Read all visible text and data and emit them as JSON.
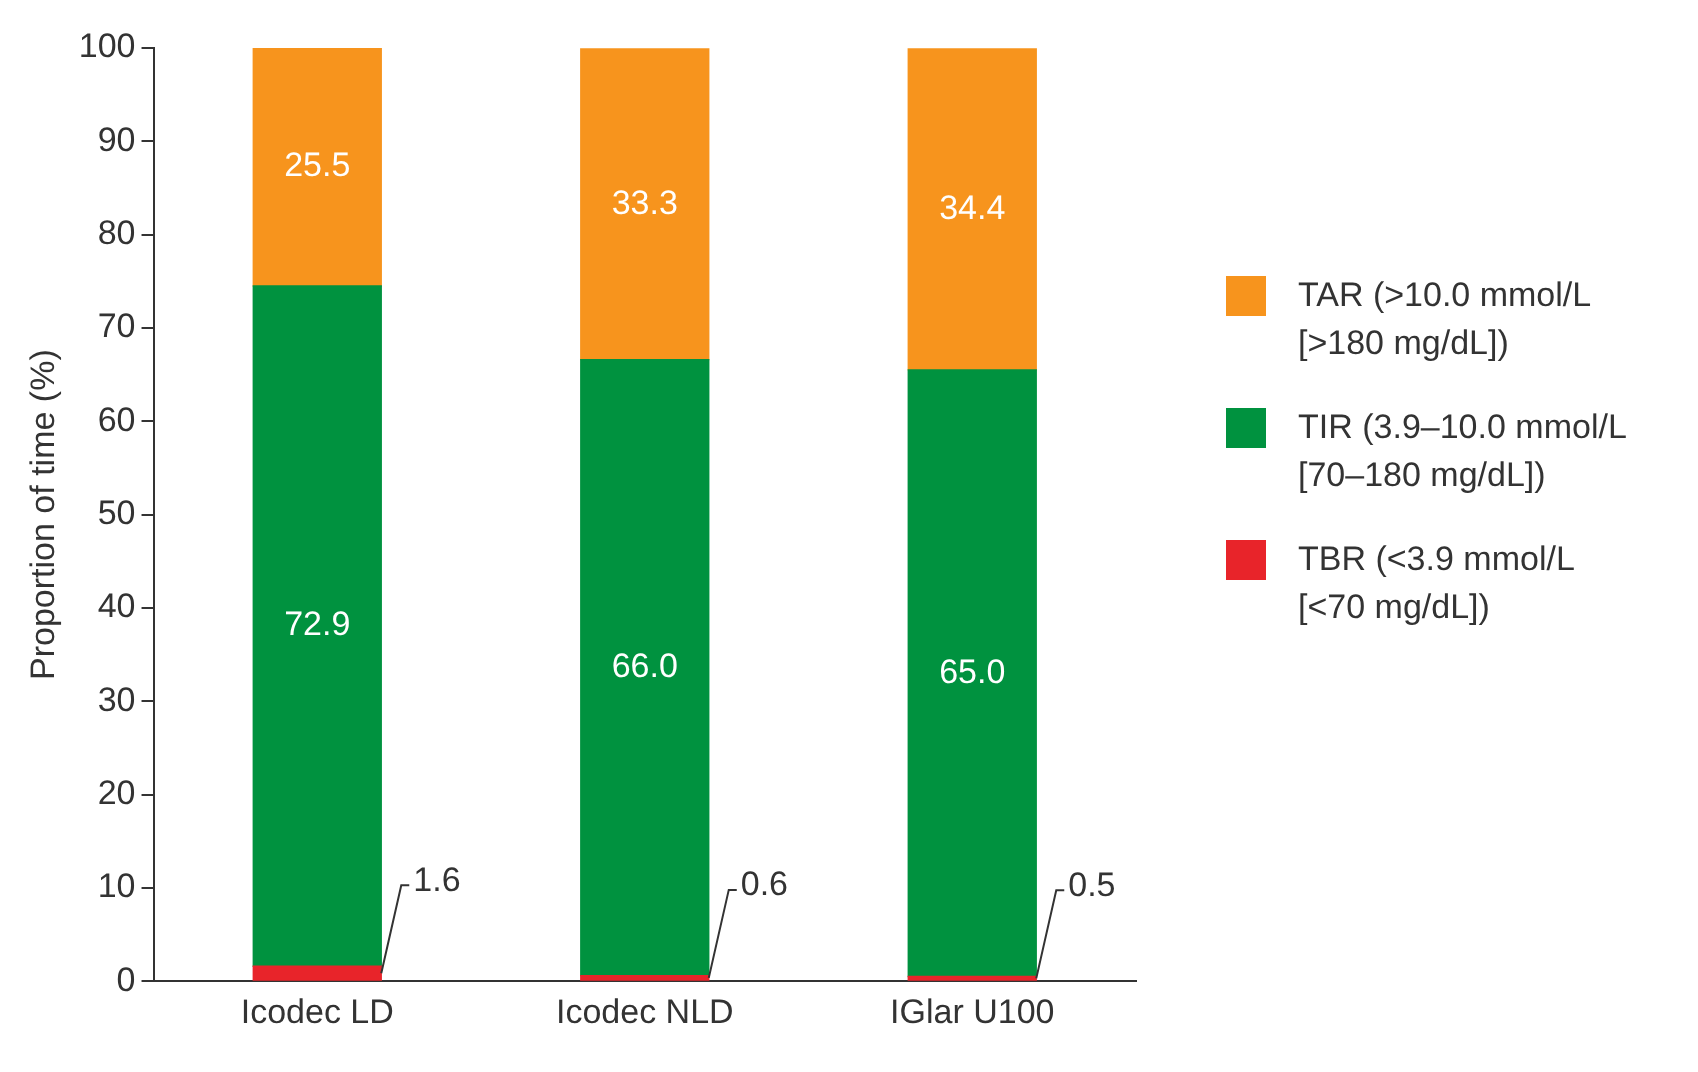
{
  "chart_data": {
    "type": "bar",
    "stacked": true,
    "ylabel": "Proportion of time (%)",
    "categories": [
      "Icodec LD",
      "Icodec NLD",
      "IGlar U100"
    ],
    "series": [
      {
        "name": "TBR (<3.9 mmol/L [<70 mg/dL])",
        "color": "#e8242a",
        "values": [
          1.6,
          0.6,
          0.5
        ],
        "value_labels": [
          "1.6",
          "0.6",
          "0.5"
        ]
      },
      {
        "name": "TIR (3.9–10.0 mmol/L [70–180 mg/dL])",
        "color": "#00923f",
        "values": [
          72.9,
          66.0,
          65.0
        ],
        "value_labels": [
          "72.9",
          "66.0",
          "65.0"
        ]
      },
      {
        "name": "TAR (>10.0 mmol/L [>180 mg/dL])",
        "color": "#f7941d",
        "values": [
          25.5,
          33.3,
          34.4
        ],
        "value_labels": [
          "25.5",
          "33.3",
          "34.4"
        ]
      }
    ],
    "ylim": [
      0,
      100
    ],
    "yticks": [
      0,
      10,
      20,
      30,
      40,
      50,
      60,
      70,
      80,
      90,
      100
    ],
    "grid": false,
    "legend": "right"
  }
}
